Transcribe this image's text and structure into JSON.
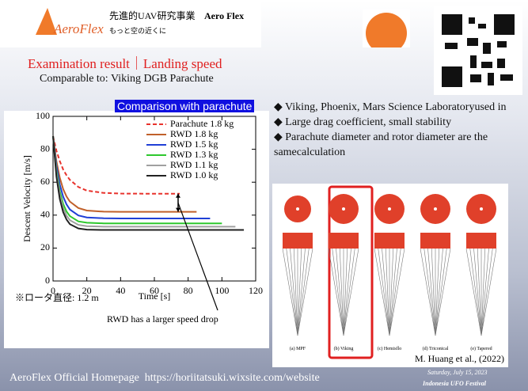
{
  "header": {
    "logo_text": "AeroFlex",
    "brand_jp": "先進的UAV研究事業",
    "brand": "Aero Flex",
    "tagline": "もっと空の近くに"
  },
  "title": "Examination result｜Landing speed",
  "subtitle": "Comparable to: Viking DGB Parachute",
  "chart_label": "Comparison with parachute",
  "bullets": [
    "◆ Viking, Phoenix, Mars Science Laboratoryused in",
    "◆ Large drag coefficient, small stability",
    "◆ Parachute diameter and rotor diameter are the samecalculation"
  ],
  "figure": {
    "captions": [
      "(a) MPF",
      "(b) Viking",
      "(c) Hemisflo",
      "(d) Triconical",
      "(e) Tapered"
    ],
    "credit": "M. Huang et al., (2022)"
  },
  "footer": {
    "text": "AeroFlex Official Homepage",
    "url": "https://horiitatsuki.wixsite.com/website",
    "date": "Saturday, July 15, 2023",
    "event": "Indonesia UFO Festival"
  },
  "chart_data": {
    "type": "line",
    "x_label": "Time [s]",
    "y_label": "Descent Velocity [m/s]",
    "annotations": [
      "※ロータ直径: 1.2 m",
      "RWD has a larger speed drop"
    ],
    "xlim": [
      0,
      120
    ],
    "xticks": [
      0,
      20,
      40,
      60,
      80,
      100,
      120
    ],
    "ylim": [
      0,
      100
    ],
    "yticks": [
      0,
      20,
      40,
      60,
      80,
      100
    ],
    "x": [
      0,
      2,
      4,
      6,
      8,
      10,
      15,
      20,
      30,
      40,
      60,
      75,
      85,
      93,
      100,
      108,
      113
    ],
    "series": [
      {
        "name": "Parachute 1.8 kg",
        "color": "#e8322c",
        "dashed": true,
        "values": [
          88,
          79.2,
          72.8,
          67.7,
          64.2,
          61.4,
          57.1,
          54.9,
          53.5,
          53.1,
          53,
          53,
          null,
          null,
          null,
          null,
          null
        ]
      },
      {
        "name": "RWD 1.8 kg",
        "color": "#c0602a",
        "values": [
          88,
          72.8,
          62.7,
          55.8,
          51.3,
          48.2,
          44.3,
          42.8,
          42.1,
          42,
          42,
          42,
          42,
          null,
          null,
          null,
          null
        ]
      },
      {
        "name": "RWD 1.5 kg",
        "color": "#1f3fd6",
        "values": [
          88,
          70,
          58.5,
          51.2,
          46.5,
          43.4,
          39.8,
          38.6,
          38.1,
          38,
          38,
          38,
          38,
          38,
          null,
          null,
          null
        ]
      },
      {
        "name": "RWD 1.3 kg",
        "color": "#2ec82e",
        "values": [
          88,
          67.2,
          54.5,
          46.8,
          42.2,
          39.4,
          36.2,
          35.4,
          35,
          35,
          35,
          35,
          35,
          35,
          35,
          null,
          null
        ]
      },
      {
        "name": "RWD 1.1 kg",
        "color": "#a0a0a0",
        "values": [
          88,
          65.5,
          52.3,
          44.3,
          39.7,
          36.9,
          34.1,
          33.3,
          33,
          33,
          33,
          33,
          33,
          33,
          33,
          33,
          null
        ]
      },
      {
        "name": "RWD 1.0 kg",
        "color": "#222222",
        "values": [
          88,
          63.5,
          49.8,
          41.8,
          37.3,
          34.5,
          31.9,
          31.2,
          31,
          31,
          31,
          31,
          31,
          31,
          31,
          31,
          31
        ]
      }
    ]
  }
}
